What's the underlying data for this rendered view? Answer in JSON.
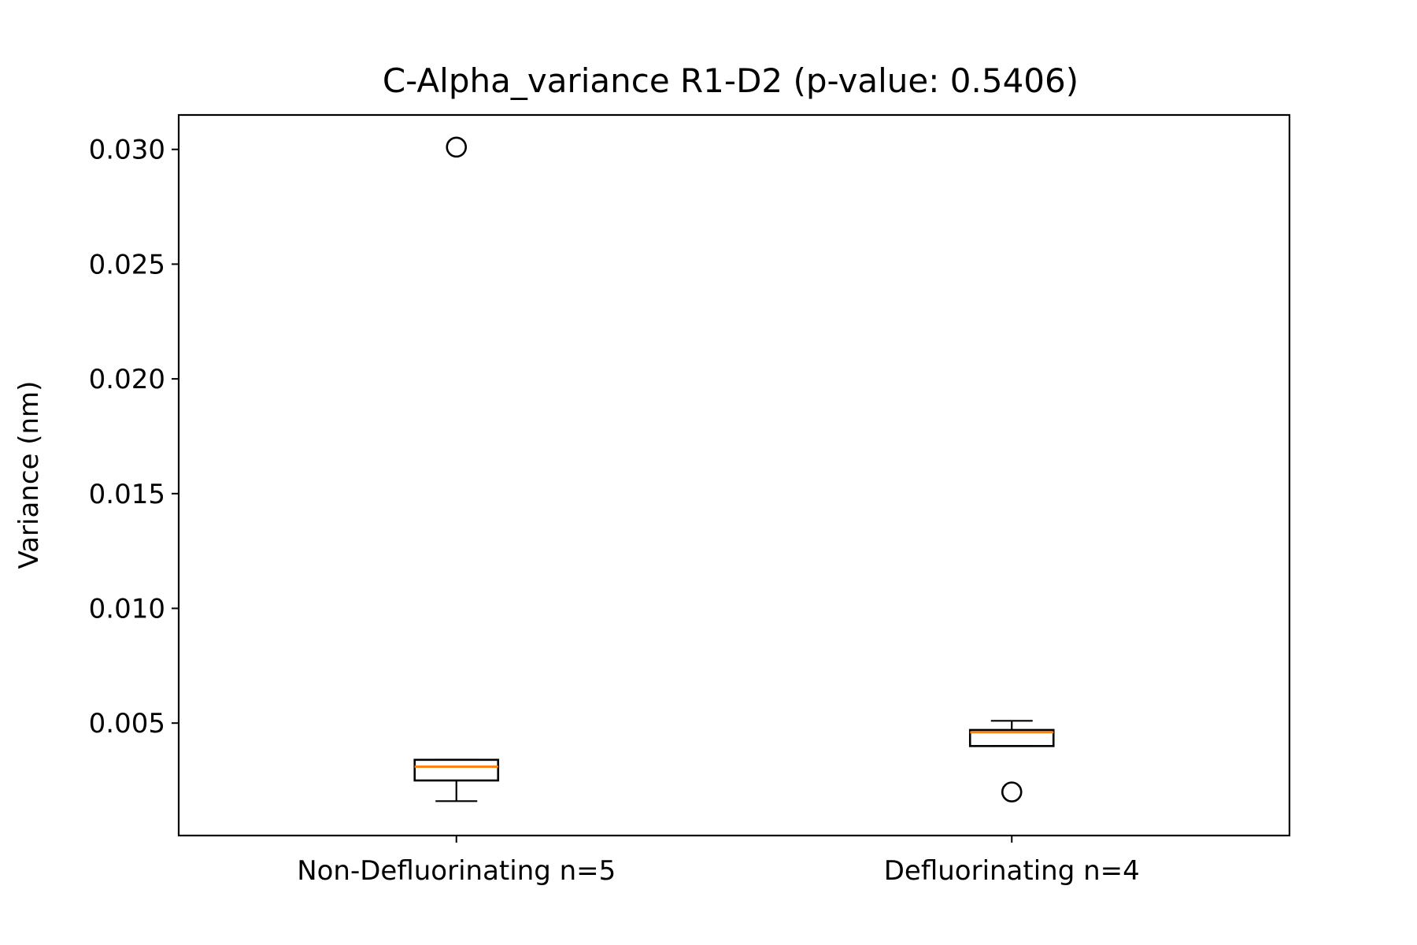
{
  "chart_data": {
    "type": "box",
    "title": "C-Alpha_variance R1-D2 (p-value: 0.5406)",
    "xlabel": "",
    "ylabel": "Variance (nm)",
    "ylim": [
      0.0001,
      0.0315
    ],
    "yticks": [
      0.005,
      0.01,
      0.015,
      0.02,
      0.025,
      0.03
    ],
    "ytick_labels": [
      "0.005",
      "0.010",
      "0.015",
      "0.020",
      "0.025",
      "0.030"
    ],
    "grid": false,
    "categories": [
      "Non-Defluorinating n=5",
      "Defluorinating n=4"
    ],
    "series": [
      {
        "category": "Non-Defluorinating n=5",
        "whisker_low": 0.0016,
        "q1": 0.0025,
        "median": 0.0031,
        "q3": 0.0034,
        "whisker_high": 0.0034,
        "outliers": [
          0.0301
        ]
      },
      {
        "category": "Defluorinating n=4",
        "whisker_low": 0.004,
        "q1": 0.004,
        "median": 0.0046,
        "q3": 0.0047,
        "whisker_high": 0.0051,
        "outliers": [
          0.002
        ]
      }
    ],
    "colors": {
      "box": "#000000",
      "median": "#ff7f0e",
      "whisker": "#000000",
      "outlier": "#000000"
    }
  }
}
